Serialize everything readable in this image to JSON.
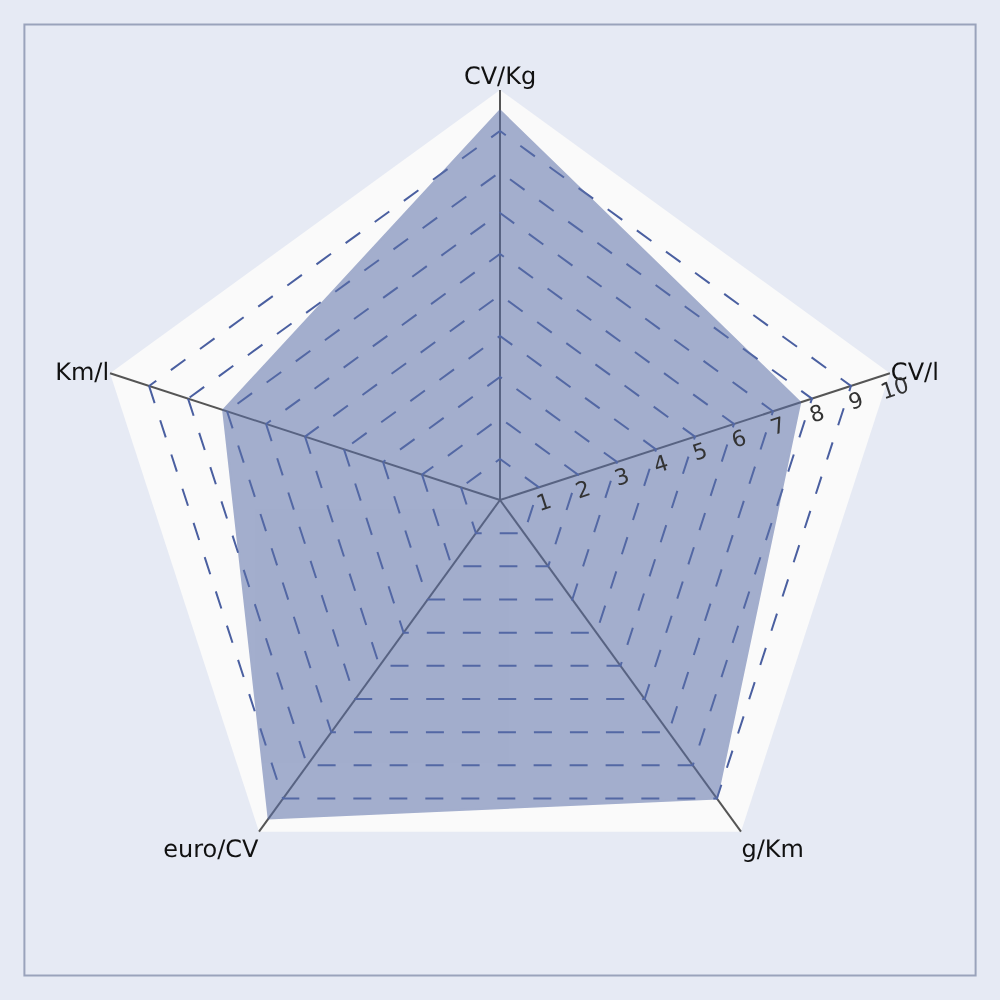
{
  "chart_data": {
    "type": "radar",
    "categories": [
      "CV/Kg",
      "CV/l",
      "g/Km",
      "euro/CV",
      "Km/l"
    ],
    "series": [
      {
        "color": "#5b6fa8",
        "values": [
          9.5,
          7.7,
          9.0,
          9.6,
          7.1
        ]
      }
    ],
    "ylim": [
      0,
      10
    ],
    "yticks": [
      1,
      2,
      3,
      4,
      5,
      6,
      7,
      8,
      9,
      10
    ],
    "grid": true
  }
}
